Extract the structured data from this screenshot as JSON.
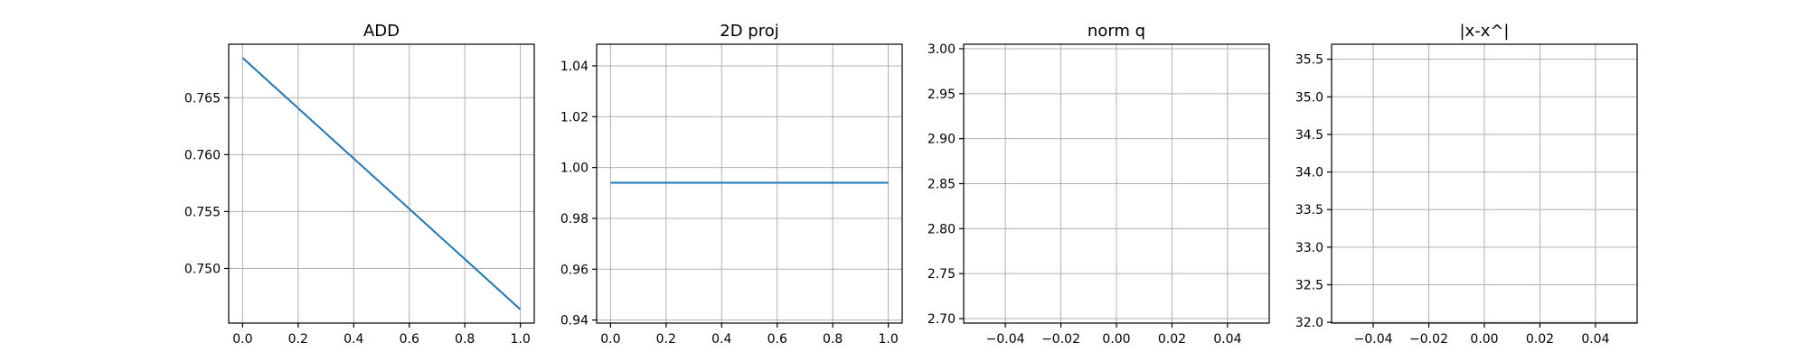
{
  "colors": {
    "series": "#1f77b4",
    "grid": "#b0b0b0"
  },
  "chart_data": [
    {
      "type": "line",
      "title": "ADD",
      "xlim": [
        -0.05,
        1.05
      ],
      "ylim": [
        0.7452,
        0.7697
      ],
      "xticks": [
        0.0,
        0.2,
        0.4,
        0.6,
        0.8,
        1.0
      ],
      "xtick_labels": [
        "0.0",
        "0.2",
        "0.4",
        "0.6",
        "0.8",
        "1.0"
      ],
      "yticks": [
        0.75,
        0.755,
        0.76,
        0.765
      ],
      "ytick_labels": [
        "0.750",
        "0.755",
        "0.760",
        "0.765"
      ],
      "grid": true,
      "series": [
        {
          "x": [
            0.0,
            1.0
          ],
          "y": [
            0.7685,
            0.7464
          ]
        }
      ]
    },
    {
      "type": "line",
      "title": "2D proj",
      "xlim": [
        -0.05,
        1.05
      ],
      "ylim": [
        0.9388,
        1.0485
      ],
      "xticks": [
        0.0,
        0.2,
        0.4,
        0.6,
        0.8,
        1.0
      ],
      "xtick_labels": [
        "0.0",
        "0.2",
        "0.4",
        "0.6",
        "0.8",
        "1.0"
      ],
      "yticks": [
        0.94,
        0.96,
        0.98,
        1.0,
        1.02,
        1.04
      ],
      "ytick_labels": [
        "0.94",
        "0.96",
        "0.98",
        "1.00",
        "1.02",
        "1.04"
      ],
      "grid": true,
      "series": [
        {
          "x": [
            0.0,
            1.0
          ],
          "y": [
            0.994,
            0.994
          ]
        }
      ]
    },
    {
      "type": "line",
      "title": "norm q",
      "xlim": [
        -0.055,
        0.055
      ],
      "ylim": [
        2.695,
        3.005
      ],
      "xticks": [
        -0.04,
        -0.02,
        0.0,
        0.02,
        0.04
      ],
      "xtick_labels": [
        "−0.04",
        "−0.02",
        "0.00",
        "0.02",
        "0.04"
      ],
      "yticks": [
        2.7,
        2.75,
        2.8,
        2.85,
        2.9,
        2.95,
        3.0
      ],
      "ytick_labels": [
        "2.70",
        "2.75",
        "2.80",
        "2.85",
        "2.90",
        "2.95",
        "3.00"
      ],
      "grid": true,
      "series": []
    },
    {
      "type": "line",
      "title": "|x-x^|",
      "xlim": [
        -0.055,
        0.055
      ],
      "ylim": [
        31.99,
        35.7
      ],
      "xticks": [
        -0.04,
        -0.02,
        0.0,
        0.02,
        0.04
      ],
      "xtick_labels": [
        "−0.04",
        "−0.02",
        "0.00",
        "0.02",
        "0.04"
      ],
      "yticks": [
        32.0,
        32.5,
        33.0,
        33.5,
        34.0,
        34.5,
        35.0,
        35.5
      ],
      "ytick_labels": [
        "32.0",
        "32.5",
        "33.0",
        "33.5",
        "34.0",
        "34.5",
        "35.0",
        "35.5"
      ],
      "grid": true,
      "series": []
    }
  ]
}
